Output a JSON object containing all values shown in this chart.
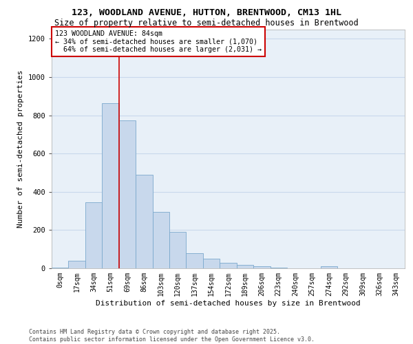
{
  "title_line1": "123, WOODLAND AVENUE, HUTTON, BRENTWOOD, CM13 1HL",
  "title_line2": "Size of property relative to semi-detached houses in Brentwood",
  "xlabel": "Distribution of semi-detached houses by size in Brentwood",
  "ylabel": "Number of semi-detached properties",
  "footnote": "Contains HM Land Registry data © Crown copyright and database right 2025.\nContains public sector information licensed under the Open Government Licence v3.0.",
  "bin_labels": [
    "0sqm",
    "17sqm",
    "34sqm",
    "51sqm",
    "69sqm",
    "86sqm",
    "103sqm",
    "120sqm",
    "137sqm",
    "154sqm",
    "172sqm",
    "189sqm",
    "206sqm",
    "223sqm",
    "240sqm",
    "257sqm",
    "274sqm",
    "292sqm",
    "309sqm",
    "326sqm",
    "343sqm"
  ],
  "bar_values": [
    5,
    40,
    345,
    865,
    775,
    490,
    295,
    190,
    80,
    50,
    30,
    18,
    10,
    3,
    0,
    0,
    10,
    0,
    0,
    0,
    0
  ],
  "bar_color": "#c8d8ec",
  "bar_edge_color": "#7aa8cc",
  "vline_x_index": 4.0,
  "property_label": "123 WOODLAND AVENUE: 84sqm",
  "pct_smaller": "34%",
  "pct_smaller_count": "1,070",
  "pct_larger": "64%",
  "pct_larger_count": "2,031",
  "annotation_box_color": "#cc0000",
  "vline_color": "#cc0000",
  "ylim": [
    0,
    1250
  ],
  "yticks": [
    0,
    200,
    400,
    600,
    800,
    1000,
    1200
  ],
  "grid_color": "#c8d8ec",
  "background_color": "#e8f0f8"
}
